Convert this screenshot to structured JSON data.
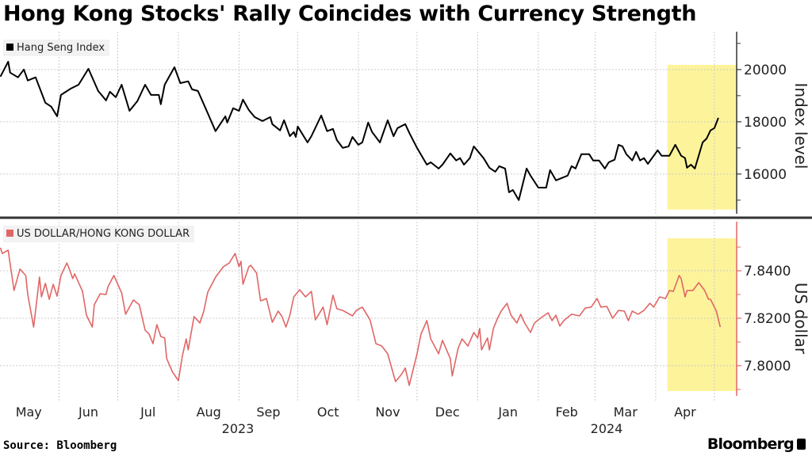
{
  "title": "Hong Kong Stocks' Rally Coincides with Currency Strength",
  "source": "Source: Bloomberg",
  "logo": "Bloomberg",
  "chart_data": [
    {
      "type": "line",
      "legend": "Hang Seng Index",
      "ylabel": "Index level",
      "color": "#000000",
      "ylim": [
        14480,
        21450
      ],
      "yticks": [
        16000,
        18000,
        20000
      ],
      "ytick_labels": [
        "16000",
        "18000",
        "20000"
      ],
      "x_unit": "days since start of May 2023",
      "highlight_from_day": 342,
      "highlight_color": "#fdf39a",
      "highlight_ylim": [
        14640,
        20180
      ],
      "points": [
        [
          1,
          19730
        ],
        [
          5,
          20300
        ],
        [
          6,
          19880
        ],
        [
          10,
          19700
        ],
        [
          13,
          20000
        ],
        [
          15,
          19580
        ],
        [
          19,
          19700
        ],
        [
          24,
          18730
        ],
        [
          27,
          18580
        ],
        [
          30,
          18210
        ],
        [
          32,
          19030
        ],
        [
          37,
          19270
        ],
        [
          41,
          19420
        ],
        [
          46,
          20030
        ],
        [
          51,
          19180
        ],
        [
          55,
          18820
        ],
        [
          57,
          19150
        ],
        [
          60,
          18940
        ],
        [
          63,
          19420
        ],
        [
          67,
          18420
        ],
        [
          71,
          18790
        ],
        [
          75,
          19420
        ],
        [
          78,
          19030
        ],
        [
          82,
          19030
        ],
        [
          83,
          18670
        ],
        [
          85,
          19420
        ],
        [
          90,
          20090
        ],
        [
          93,
          19480
        ],
        [
          97,
          19550
        ],
        [
          99,
          19240
        ],
        [
          102,
          19180
        ],
        [
          107,
          18330
        ],
        [
          111,
          17640
        ],
        [
          116,
          18210
        ],
        [
          117,
          17970
        ],
        [
          120,
          18520
        ],
        [
          123,
          18420
        ],
        [
          125,
          18850
        ],
        [
          128,
          18450
        ],
        [
          131,
          18180
        ],
        [
          135,
          18030
        ],
        [
          139,
          18180
        ],
        [
          140,
          17910
        ],
        [
          144,
          17670
        ],
        [
          146,
          18060
        ],
        [
          149,
          17450
        ],
        [
          151,
          17610
        ],
        [
          152,
          17420
        ],
        [
          153,
          17820
        ],
        [
          158,
          17210
        ],
        [
          160,
          17450
        ],
        [
          165,
          18240
        ],
        [
          168,
          17640
        ],
        [
          171,
          17730
        ],
        [
          173,
          17300
        ],
        [
          176,
          17000
        ],
        [
          179,
          17060
        ],
        [
          181,
          17420
        ],
        [
          184,
          17120
        ],
        [
          186,
          17210
        ],
        [
          189,
          17970
        ],
        [
          191,
          17610
        ],
        [
          195,
          17210
        ],
        [
          196,
          17420
        ],
        [
          199,
          18060
        ],
        [
          202,
          17450
        ],
        [
          204,
          17760
        ],
        [
          208,
          17910
        ],
        [
          210,
          17580
        ],
        [
          214,
          17000
        ],
        [
          219,
          16360
        ],
        [
          221,
          16450
        ],
        [
          225,
          16210
        ],
        [
          227,
          16360
        ],
        [
          231,
          16790
        ],
        [
          234,
          16520
        ],
        [
          236,
          16610
        ],
        [
          238,
          16360
        ],
        [
          241,
          16610
        ],
        [
          243,
          17060
        ],
        [
          248,
          16610
        ],
        [
          251,
          16240
        ],
        [
          254,
          16090
        ],
        [
          256,
          16300
        ],
        [
          259,
          16210
        ],
        [
          261,
          15300
        ],
        [
          263,
          15390
        ],
        [
          266,
          15000
        ],
        [
          270,
          16210
        ],
        [
          272,
          15940
        ],
        [
          276,
          15480
        ],
        [
          280,
          15480
        ],
        [
          282,
          16150
        ],
        [
          285,
          15760
        ],
        [
          291,
          15940
        ],
        [
          293,
          16300
        ],
        [
          295,
          16210
        ],
        [
          298,
          16760
        ],
        [
          302,
          16760
        ],
        [
          304,
          16520
        ],
        [
          307,
          16520
        ],
        [
          310,
          16210
        ],
        [
          312,
          16450
        ],
        [
          315,
          16550
        ],
        [
          317,
          17120
        ],
        [
          319,
          17060
        ],
        [
          321,
          16760
        ],
        [
          324,
          16520
        ],
        [
          326,
          16850
        ],
        [
          328,
          16520
        ],
        [
          330,
          16610
        ],
        [
          332,
          16390
        ],
        [
          337,
          16910
        ],
        [
          339,
          16700
        ],
        [
          343,
          16700
        ],
        [
          346,
          17120
        ],
        [
          349,
          16700
        ],
        [
          351,
          16610
        ],
        [
          352,
          16240
        ],
        [
          354,
          16360
        ],
        [
          356,
          16210
        ],
        [
          360,
          17210
        ],
        [
          362,
          17360
        ],
        [
          364,
          17670
        ],
        [
          366,
          17760
        ],
        [
          368,
          18150
        ]
      ]
    },
    {
      "type": "line",
      "legend": "US DOLLAR/HONG KONG DOLLAR",
      "ylabel": "US dollar",
      "color": "#e06666",
      "ylim": [
        7.7873,
        7.8607
      ],
      "yticks": [
        7.8,
        7.82,
        7.84
      ],
      "ytick_labels": [
        "7.8000",
        "7.8200",
        "7.8400"
      ],
      "x_unit": "days since start of May 2023",
      "highlight_from_day": 342,
      "highlight_color": "#fdf39a",
      "highlight_ylim": [
        7.7893,
        7.8537
      ],
      "points": [
        [
          1,
          7.8497
        ],
        [
          2,
          7.8473
        ],
        [
          5,
          7.8487
        ],
        [
          8,
          7.8317
        ],
        [
          11,
          7.8407
        ],
        [
          14,
          7.838
        ],
        [
          15,
          7.83
        ],
        [
          18,
          7.8163
        ],
        [
          21,
          7.8373
        ],
        [
          22,
          7.829
        ],
        [
          24,
          7.8347
        ],
        [
          26,
          7.828
        ],
        [
          28,
          7.8343
        ],
        [
          30,
          7.8293
        ],
        [
          32,
          7.838
        ],
        [
          35,
          7.8433
        ],
        [
          36,
          7.8413
        ],
        [
          38,
          7.8367
        ],
        [
          39,
          7.8387
        ],
        [
          43,
          7.8313
        ],
        [
          45,
          7.8213
        ],
        [
          48,
          7.8163
        ],
        [
          49,
          7.8257
        ],
        [
          52,
          7.8303
        ],
        [
          55,
          7.83
        ],
        [
          56,
          7.8333
        ],
        [
          59,
          7.838
        ],
        [
          63,
          7.8307
        ],
        [
          65,
          7.8217
        ],
        [
          69,
          7.8277
        ],
        [
          72,
          7.8257
        ],
        [
          75,
          7.815
        ],
        [
          77,
          7.8133
        ],
        [
          79,
          7.8093
        ],
        [
          81,
          7.8173
        ],
        [
          83,
          7.8123
        ],
        [
          85,
          7.8117
        ],
        [
          86,
          7.803
        ],
        [
          89,
          7.7973
        ],
        [
          92,
          7.7937
        ],
        [
          94,
          7.804
        ],
        [
          96,
          7.8113
        ],
        [
          97,
          7.8067
        ],
        [
          100,
          7.8207
        ],
        [
          103,
          7.818
        ],
        [
          105,
          7.823
        ],
        [
          107,
          7.831
        ],
        [
          111,
          7.8373
        ],
        [
          115,
          7.8417
        ],
        [
          118,
          7.8433
        ],
        [
          121,
          7.8473
        ],
        [
          123,
          7.8417
        ],
        [
          124,
          7.844
        ],
        [
          125,
          7.8343
        ],
        [
          128,
          7.8417
        ],
        [
          129,
          7.8423
        ],
        [
          132,
          7.839
        ],
        [
          134,
          7.8273
        ],
        [
          137,
          7.8283
        ],
        [
          140,
          7.8183
        ],
        [
          143,
          7.823
        ],
        [
          145,
          7.8207
        ],
        [
          147,
          7.8163
        ],
        [
          149,
          7.8213
        ],
        [
          151,
          7.829
        ],
        [
          154,
          7.832
        ],
        [
          157,
          7.829
        ],
        [
          160,
          7.8313
        ],
        [
          162,
          7.8193
        ],
        [
          166,
          7.8247
        ],
        [
          168,
          7.8173
        ],
        [
          171,
          7.8297
        ],
        [
          173,
          7.824
        ],
        [
          176,
          7.8233
        ],
        [
          181,
          7.821
        ],
        [
          183,
          7.8233
        ],
        [
          186,
          7.8247
        ],
        [
          190,
          7.8193
        ],
        [
          193,
          7.8093
        ],
        [
          196,
          7.8083
        ],
        [
          199,
          7.805
        ],
        [
          203,
          7.7933
        ],
        [
          206,
          7.7963
        ],
        [
          208,
          7.799
        ],
        [
          210,
          7.7917
        ],
        [
          214,
          7.805
        ],
        [
          216,
          7.8133
        ],
        [
          219,
          7.819
        ],
        [
          221,
          7.8113
        ],
        [
          225,
          7.805
        ],
        [
          227,
          7.8107
        ],
        [
          231,
          7.803
        ],
        [
          232,
          7.7957
        ],
        [
          235,
          7.8073
        ],
        [
          237,
          7.8113
        ],
        [
          240,
          7.8083
        ],
        [
          243,
          7.814
        ],
        [
          245,
          7.8117
        ],
        [
          246,
          7.8157
        ],
        [
          247,
          7.8067
        ],
        [
          250,
          7.8117
        ],
        [
          251,
          7.8067
        ],
        [
          253,
          7.8157
        ],
        [
          255,
          7.8197
        ],
        [
          257,
          7.823
        ],
        [
          260,
          7.8263
        ],
        [
          262,
          7.8213
        ],
        [
          265,
          7.818
        ],
        [
          267,
          7.8217
        ],
        [
          269,
          7.818
        ],
        [
          272,
          7.814
        ],
        [
          274,
          7.818
        ],
        [
          277,
          7.82
        ],
        [
          281,
          7.8223
        ],
        [
          283,
          7.819
        ],
        [
          285,
          7.8213
        ],
        [
          287,
          7.8167
        ],
        [
          289,
          7.819
        ],
        [
          293,
          7.8217
        ],
        [
          297,
          7.821
        ],
        [
          300,
          7.8243
        ],
        [
          303,
          7.8247
        ],
        [
          306,
          7.8283
        ],
        [
          308,
          7.8247
        ],
        [
          311,
          7.825
        ],
        [
          314,
          7.82
        ],
        [
          317,
          7.8233
        ],
        [
          320,
          7.823
        ],
        [
          322,
          7.819
        ],
        [
          324,
          7.823
        ],
        [
          327,
          7.8217
        ],
        [
          330,
          7.8233
        ],
        [
          333,
          7.8263
        ],
        [
          335,
          7.8247
        ],
        [
          338,
          7.829
        ],
        [
          341,
          7.8283
        ],
        [
          343,
          7.8317
        ],
        [
          345,
          7.8313
        ],
        [
          348,
          7.838
        ],
        [
          349,
          7.8367
        ],
        [
          351,
          7.829
        ],
        [
          352,
          7.8317
        ],
        [
          355,
          7.8317
        ],
        [
          358,
          7.835
        ],
        [
          361,
          7.8317
        ],
        [
          363,
          7.828
        ],
        [
          364,
          7.828
        ],
        [
          367,
          7.823
        ],
        [
          369,
          7.8163
        ]
      ]
    }
  ],
  "x_axis": {
    "months": [
      "May",
      "Jun",
      "Jul",
      "Aug",
      "Sep",
      "Oct",
      "Nov",
      "Dec",
      "Jan",
      "Feb",
      "Mar",
      "Apr"
    ],
    "years": [
      "2023",
      "2024"
    ]
  }
}
